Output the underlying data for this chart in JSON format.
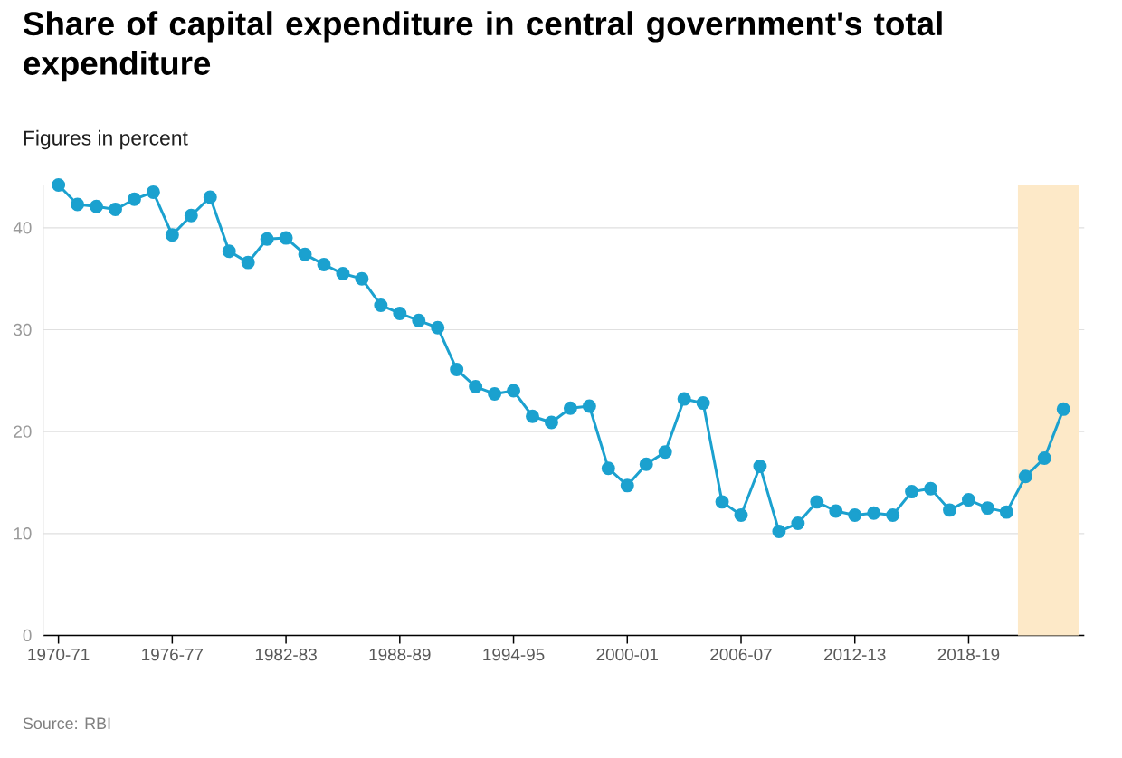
{
  "chart_data": {
    "type": "line",
    "title": "Share of capital expenditure in central government's total expenditure",
    "subtitle": "Figures in percent",
    "annotations": [
      "Source: RBI"
    ],
    "categories": [
      "1970-71",
      null,
      null,
      null,
      null,
      null,
      "1976-77",
      null,
      null,
      null,
      null,
      null,
      "1982-83",
      null,
      null,
      null,
      null,
      null,
      "1988-89",
      null,
      null,
      null,
      null,
      null,
      "1994-95",
      null,
      null,
      null,
      null,
      null,
      "2000-01",
      null,
      null,
      null,
      null,
      null,
      "2006-07",
      null,
      null,
      null,
      null,
      null,
      "2012-13",
      null,
      null,
      null,
      null,
      null,
      "2018-19",
      null,
      null,
      null,
      null,
      null
    ],
    "series": [
      {
        "color": "#1ba1cf",
        "values": [
          44.2,
          42.3,
          42.1,
          41.8,
          42.8,
          43.5,
          39.3,
          41.2,
          43.0,
          37.7,
          36.6,
          38.9,
          39.0,
          37.4,
          36.4,
          35.5,
          35.0,
          32.4,
          31.6,
          30.9,
          30.2,
          26.1,
          24.4,
          23.7,
          24.0,
          21.5,
          20.9,
          22.3,
          22.5,
          16.4,
          14.7,
          16.8,
          18.0,
          23.2,
          22.8,
          13.1,
          11.8,
          16.6,
          10.2,
          11.0,
          13.1,
          12.2,
          11.8,
          12.0,
          11.8,
          14.1,
          14.4,
          12.3,
          13.3,
          12.5,
          12.1,
          15.6,
          17.4,
          22.2
        ]
      }
    ],
    "ylim": [
      0,
      44.2
    ],
    "yticks": [
      0,
      10,
      20,
      30,
      40
    ],
    "grid": "y",
    "marker": "circle",
    "line_style": "solid"
  }
}
